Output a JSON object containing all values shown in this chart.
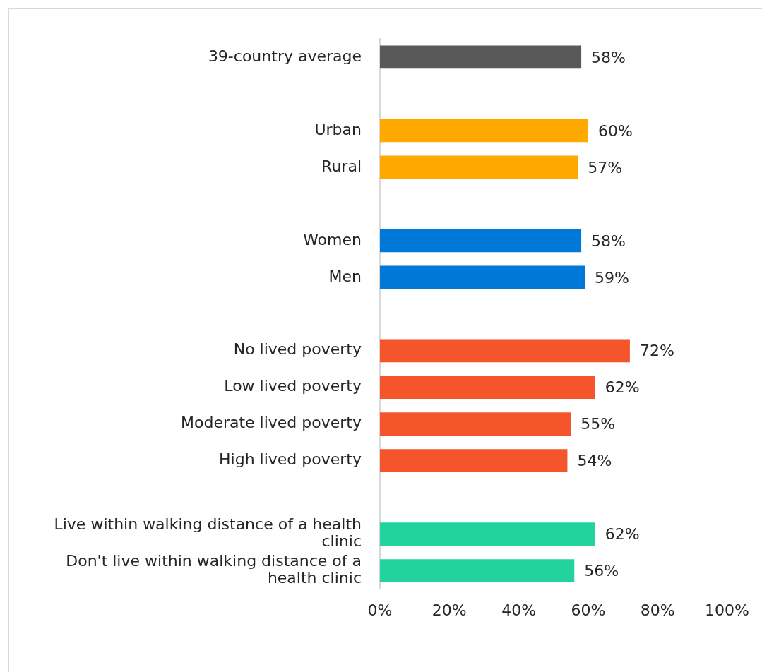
{
  "chart_data": {
    "type": "bar",
    "orientation": "horizontal",
    "categories": [
      "39-country average",
      null,
      "Urban",
      "Rural",
      null,
      "Women",
      "Men",
      null,
      "No lived poverty",
      "Low lived poverty",
      "Moderate lived poverty",
      "High lived poverty",
      null,
      "Live within walking distance of a health clinic",
      "Don't live within walking distance of a health clinic"
    ],
    "values": [
      58,
      null,
      60,
      57,
      null,
      58,
      59,
      null,
      72,
      62,
      55,
      54,
      null,
      62,
      56
    ],
    "colors": [
      "#595959",
      null,
      "#ffa800",
      "#ffa800",
      null,
      "#0078d7",
      "#0078d7",
      null,
      "#f4552a",
      "#f4552a",
      "#f4552a",
      "#f4552a",
      null,
      "#22d3a0",
      "#22d3a0"
    ],
    "value_labels": [
      "58%",
      null,
      "60%",
      "57%",
      null,
      "58%",
      "59%",
      null,
      "72%",
      "62%",
      "55%",
      "54%",
      null,
      "62%",
      "56%"
    ],
    "xlim": [
      0,
      100
    ],
    "xticks": [
      {
        "value": 0,
        "label": "0%"
      },
      {
        "value": 20,
        "label": "20%"
      },
      {
        "value": 40,
        "label": "40%"
      },
      {
        "value": 60,
        "label": "60%"
      },
      {
        "value": 80,
        "label": "80%"
      },
      {
        "value": 100,
        "label": "100%"
      }
    ],
    "grid": false,
    "legend": false
  }
}
